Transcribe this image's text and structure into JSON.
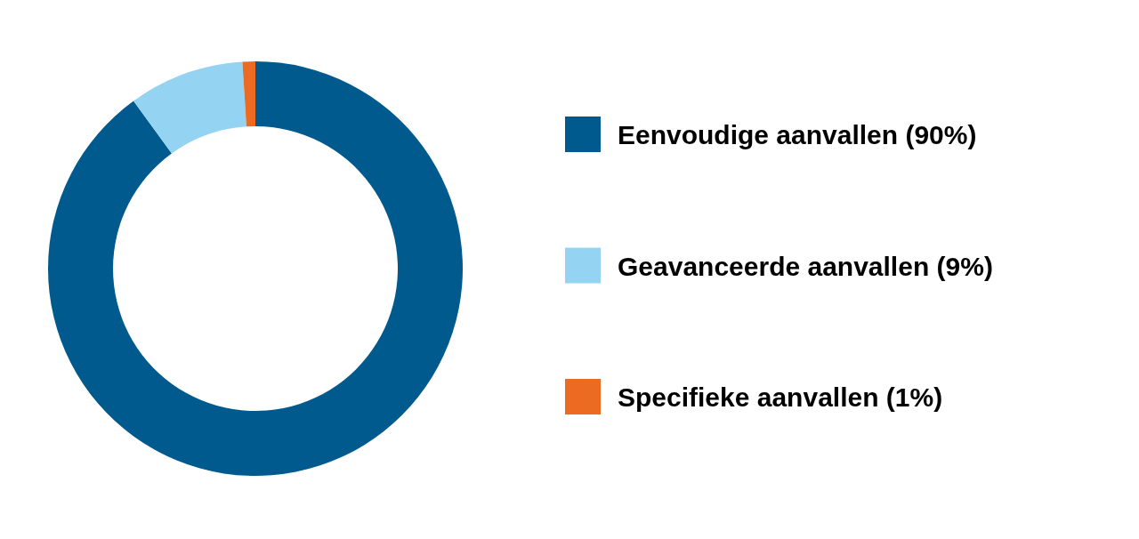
{
  "chart_data": {
    "type": "donut",
    "categories": [
      "Eenvoudige aanvallen (90%)",
      "Geavanceerde aanvallen (9%)",
      "Specifieke aanvallen (1%)"
    ],
    "values": [
      90,
      9,
      1
    ],
    "colors": [
      "#005a8d",
      "#95d3f3",
      "#eb6b23"
    ],
    "legend": "right"
  }
}
